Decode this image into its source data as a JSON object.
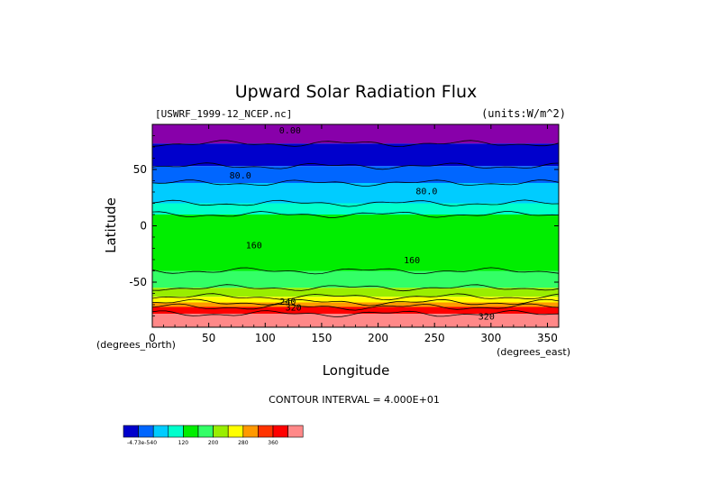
{
  "chart_data": {
    "type": "heatmap",
    "title": "Upward Solar Radiation Flux",
    "subtitle_left": "[USWRF_1999-12_NCEP.nc]",
    "subtitle_right": "(units:W/m^2)",
    "xlabel": "Longitude",
    "ylabel": "Latitude",
    "x_unit_label": "(degrees_east)",
    "y_unit_label": "(degrees_north)",
    "xlim": [
      0,
      360
    ],
    "ylim": [
      -90,
      90
    ],
    "x_ticks": [
      0,
      50,
      100,
      150,
      200,
      250,
      300,
      350
    ],
    "y_ticks": [
      -50,
      0,
      50
    ],
    "contour_interval_text": "CONTOUR INTERVAL = 4.000E+01",
    "contour_labels": [
      {
        "text": "0.00",
        "lon": 122,
        "lat": 82
      },
      {
        "text": "80.0",
        "lon": 78,
        "lat": 42
      },
      {
        "text": "80.0",
        "lon": 243,
        "lat": 28
      },
      {
        "text": "160",
        "lon": 90,
        "lat": -20
      },
      {
        "text": "160",
        "lon": 230,
        "lat": -33
      },
      {
        "text": "240",
        "lon": 120,
        "lat": -70
      },
      {
        "text": "320",
        "lon": 125,
        "lat": -75
      },
      {
        "text": "320",
        "lon": 296,
        "lat": -83
      }
    ],
    "colorbar": {
      "colors": [
        "#0000cc",
        "#0066ff",
        "#00ccff",
        "#00ffcc",
        "#00ee00",
        "#33ff66",
        "#99ee00",
        "#ffff00",
        "#ff9900",
        "#ff3300",
        "#ff0000",
        "#ff8888"
      ],
      "labels": [
        {
          "text": "-4.73e-5",
          "index": 0
        },
        {
          "text": "40",
          "index": 1
        },
        {
          "text": "120",
          "index": 3
        },
        {
          "text": "200",
          "index": 5
        },
        {
          "text": "280",
          "index": 7
        },
        {
          "text": "360",
          "index": 9
        }
      ]
    },
    "zonal_profile_approx": [
      {
        "lat_from": 90,
        "lat_to": 73,
        "value": 0,
        "color": "#8800aa"
      },
      {
        "lat_from": 73,
        "lat_to": 53,
        "value": 20,
        "color": "#0000cc"
      },
      {
        "lat_from": 53,
        "lat_to": 38,
        "value": 60,
        "color": "#0066ff"
      },
      {
        "lat_from": 38,
        "lat_to": 20,
        "value": 100,
        "color": "#00ccff"
      },
      {
        "lat_from": 20,
        "lat_to": 10,
        "value": 120,
        "color": "#00ffcc"
      },
      {
        "lat_from": 10,
        "lat_to": -40,
        "value": 160,
        "color": "#00ee00"
      },
      {
        "lat_from": -40,
        "lat_to": -55,
        "value": 200,
        "color": "#33ff66"
      },
      {
        "lat_from": -55,
        "lat_to": -63,
        "value": 220,
        "color": "#99ee00"
      },
      {
        "lat_from": -63,
        "lat_to": -68,
        "value": 260,
        "color": "#ffff00"
      },
      {
        "lat_from": -68,
        "lat_to": -72,
        "value": 300,
        "color": "#ff9900"
      },
      {
        "lat_from": -72,
        "lat_to": -78,
        "value": 340,
        "color": "#ff0000"
      },
      {
        "lat_from": -78,
        "lat_to": -90,
        "value": 370,
        "color": "#ff8888"
      }
    ]
  }
}
